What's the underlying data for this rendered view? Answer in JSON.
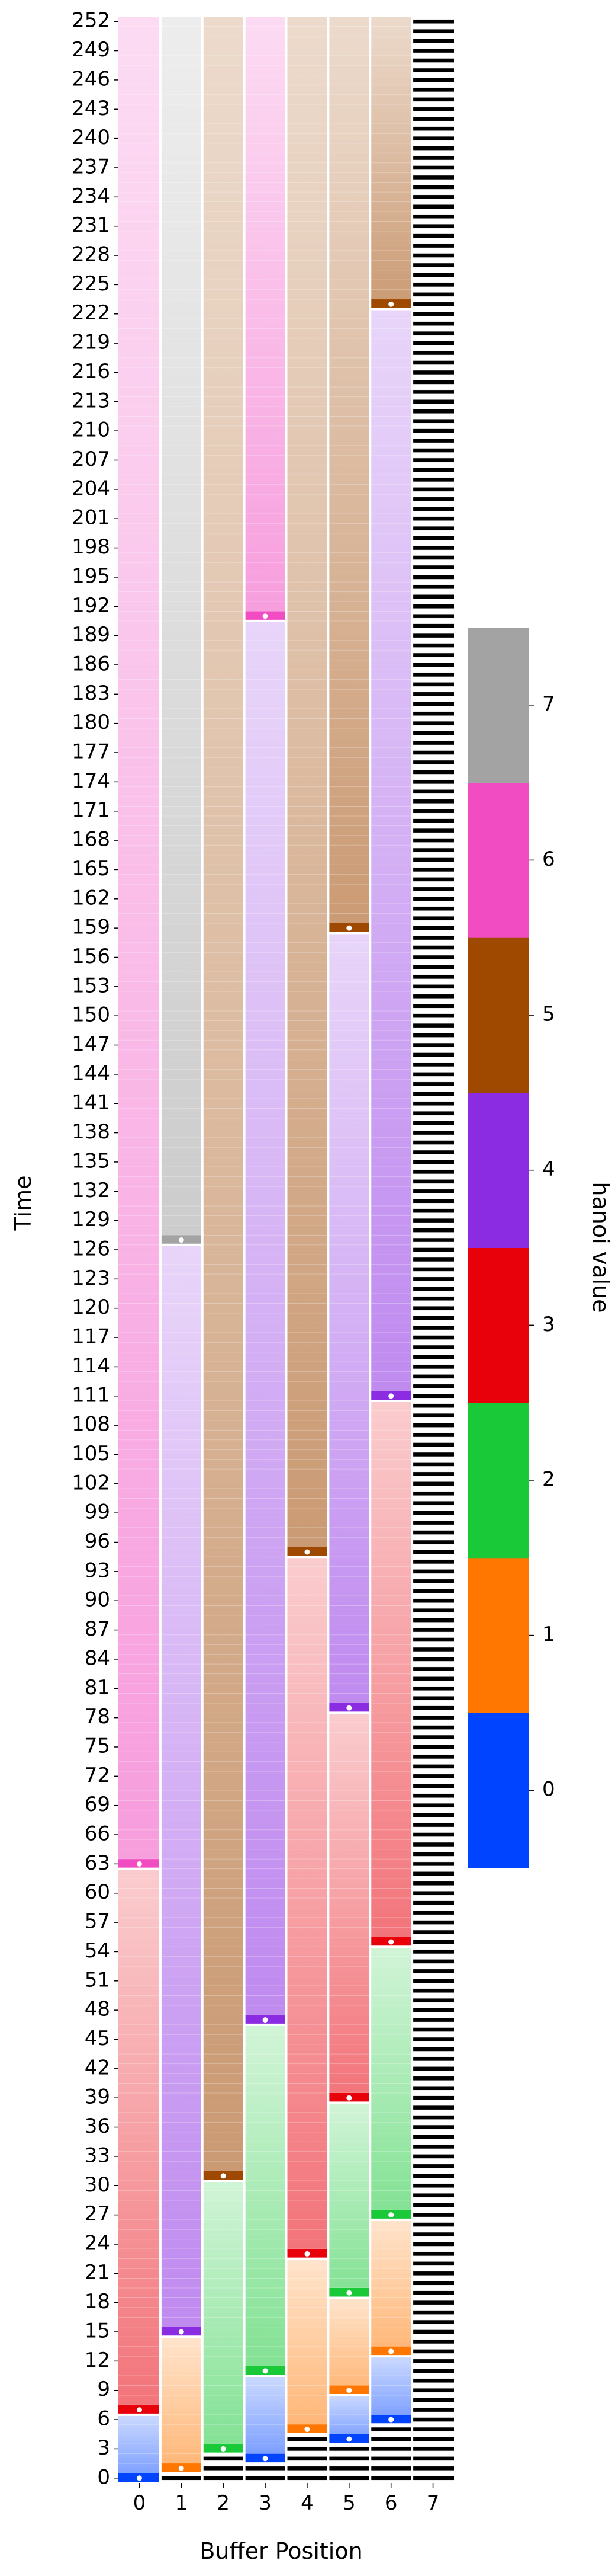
{
  "chart_data": {
    "type": "heatmap",
    "title": "",
    "xlabel": "Buffer Position",
    "ylabel": "Time",
    "x_ticks": [
      "0",
      "1",
      "2",
      "3",
      "4",
      "5",
      "6",
      "7"
    ],
    "time_range": [
      0,
      253
    ],
    "y_ticks": [
      0,
      3,
      6,
      9,
      12,
      15,
      18,
      21,
      24,
      27,
      30,
      33,
      36,
      39,
      42,
      45,
      48,
      51,
      54,
      57,
      60,
      63,
      66,
      69,
      72,
      75,
      78,
      81,
      84,
      87,
      90,
      93,
      96,
      99,
      102,
      105,
      108,
      111,
      114,
      117,
      120,
      123,
      126,
      129,
      132,
      135,
      138,
      141,
      144,
      147,
      150,
      153,
      156,
      159,
      162,
      165,
      168,
      171,
      174,
      177,
      180,
      183,
      186,
      189,
      192,
      195,
      198,
      201,
      204,
      207,
      210,
      213,
      216,
      219,
      222,
      225,
      228,
      231,
      234,
      237,
      240,
      243,
      246,
      249,
      252
    ],
    "colorbar": {
      "label": "hanoi value",
      "ticks": [
        "0",
        "1",
        "2",
        "3",
        "4",
        "5",
        "6",
        "7"
      ],
      "colors": [
        "#0044ff",
        "#ff7700",
        "#1ac938",
        "#e8000b",
        "#8b2be2",
        "#9f4800",
        "#f14cc1",
        "#a3a3a3"
      ]
    },
    "columns": [
      {
        "position": 0,
        "writes": [
          {
            "time": 0,
            "value": 0
          },
          {
            "time": 7,
            "value": 3
          },
          {
            "time": 63,
            "value": 6
          }
        ]
      },
      {
        "position": 1,
        "writes": [
          {
            "time": 1,
            "value": 1
          },
          {
            "time": 15,
            "value": 4
          },
          {
            "time": 127,
            "value": 7
          }
        ]
      },
      {
        "position": 2,
        "writes": [
          {
            "time": 3,
            "value": 2
          },
          {
            "time": 31,
            "value": 5
          }
        ]
      },
      {
        "position": 3,
        "writes": [
          {
            "time": 2,
            "value": 0
          },
          {
            "time": 11,
            "value": 2
          },
          {
            "time": 47,
            "value": 4
          },
          {
            "time": 191,
            "value": 6
          }
        ]
      },
      {
        "position": 4,
        "writes": [
          {
            "time": 5,
            "value": 1
          },
          {
            "time": 23,
            "value": 3
          },
          {
            "time": 95,
            "value": 5
          }
        ]
      },
      {
        "position": 5,
        "writes": [
          {
            "time": 4,
            "value": 0
          },
          {
            "time": 9,
            "value": 1
          },
          {
            "time": 19,
            "value": 2
          },
          {
            "time": 39,
            "value": 3
          },
          {
            "time": 79,
            "value": 4
          },
          {
            "time": 159,
            "value": 5
          }
        ]
      },
      {
        "position": 6,
        "writes": [
          {
            "time": 6,
            "value": 0
          },
          {
            "time": 13,
            "value": 1
          },
          {
            "time": 27,
            "value": 2
          },
          {
            "time": 55,
            "value": 3
          },
          {
            "time": 111,
            "value": 4
          },
          {
            "time": 223,
            "value": 5
          }
        ]
      },
      {
        "position": 7,
        "writes": []
      }
    ]
  }
}
